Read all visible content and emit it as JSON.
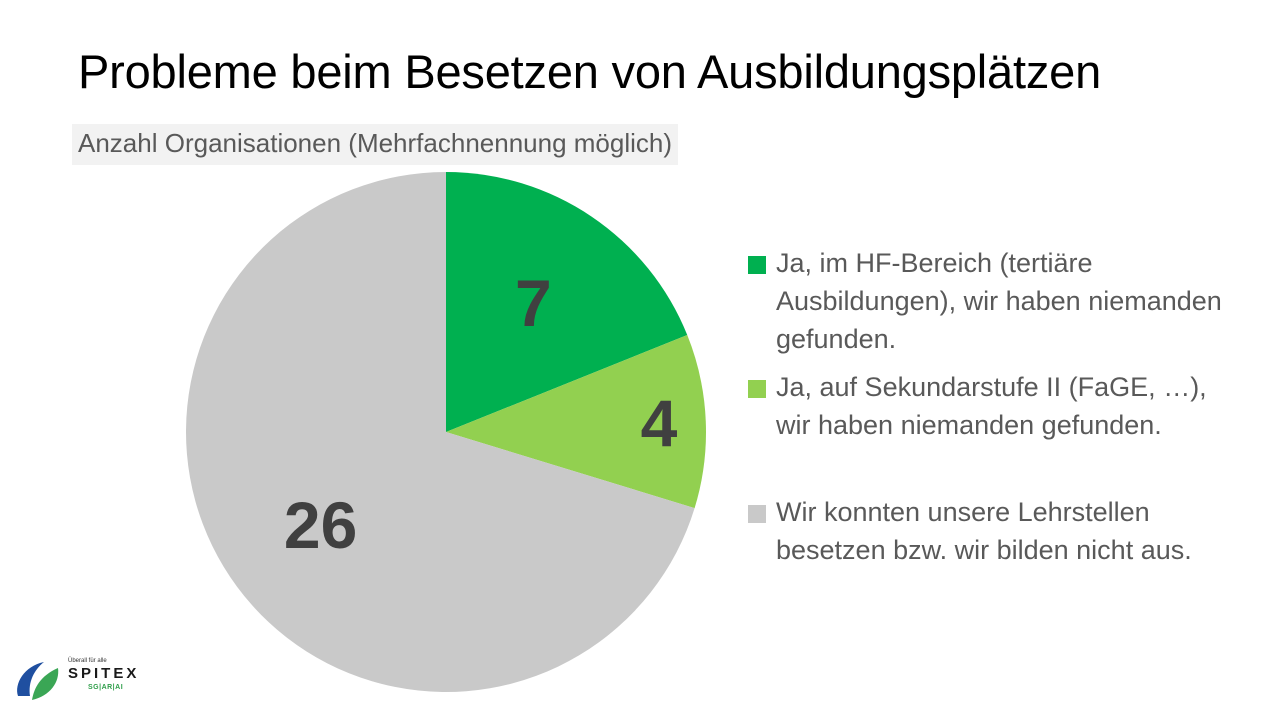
{
  "chart_data": {
    "type": "pie",
    "title": "Probleme beim Besetzen von Ausbildungsplätzen",
    "subtitle": "Anzahl Organisationen (Mehrfachnennung möglich)",
    "slices": [
      {
        "label": "Ja, im HF-Bereich (tertiäre Ausbildungen), wir haben niemanden gefunden.",
        "value": 7,
        "color": "#00b050"
      },
      {
        "label": "Ja, auf Sekundarstufe II (FaGE, …), wir haben niemanden gefunden.",
        "value": 4,
        "color": "#92d050"
      },
      {
        "label": "Wir konnten unsere Lehrstellen besetzen bzw. wir bilden nicht aus.",
        "value": 26,
        "color": "#c9c9c9"
      }
    ],
    "data_label_color": "#404040",
    "legend_position": "right"
  },
  "logo": {
    "tagline": "Überall für alle",
    "brand": "SPITEX",
    "region": "SG|AR|AI"
  }
}
